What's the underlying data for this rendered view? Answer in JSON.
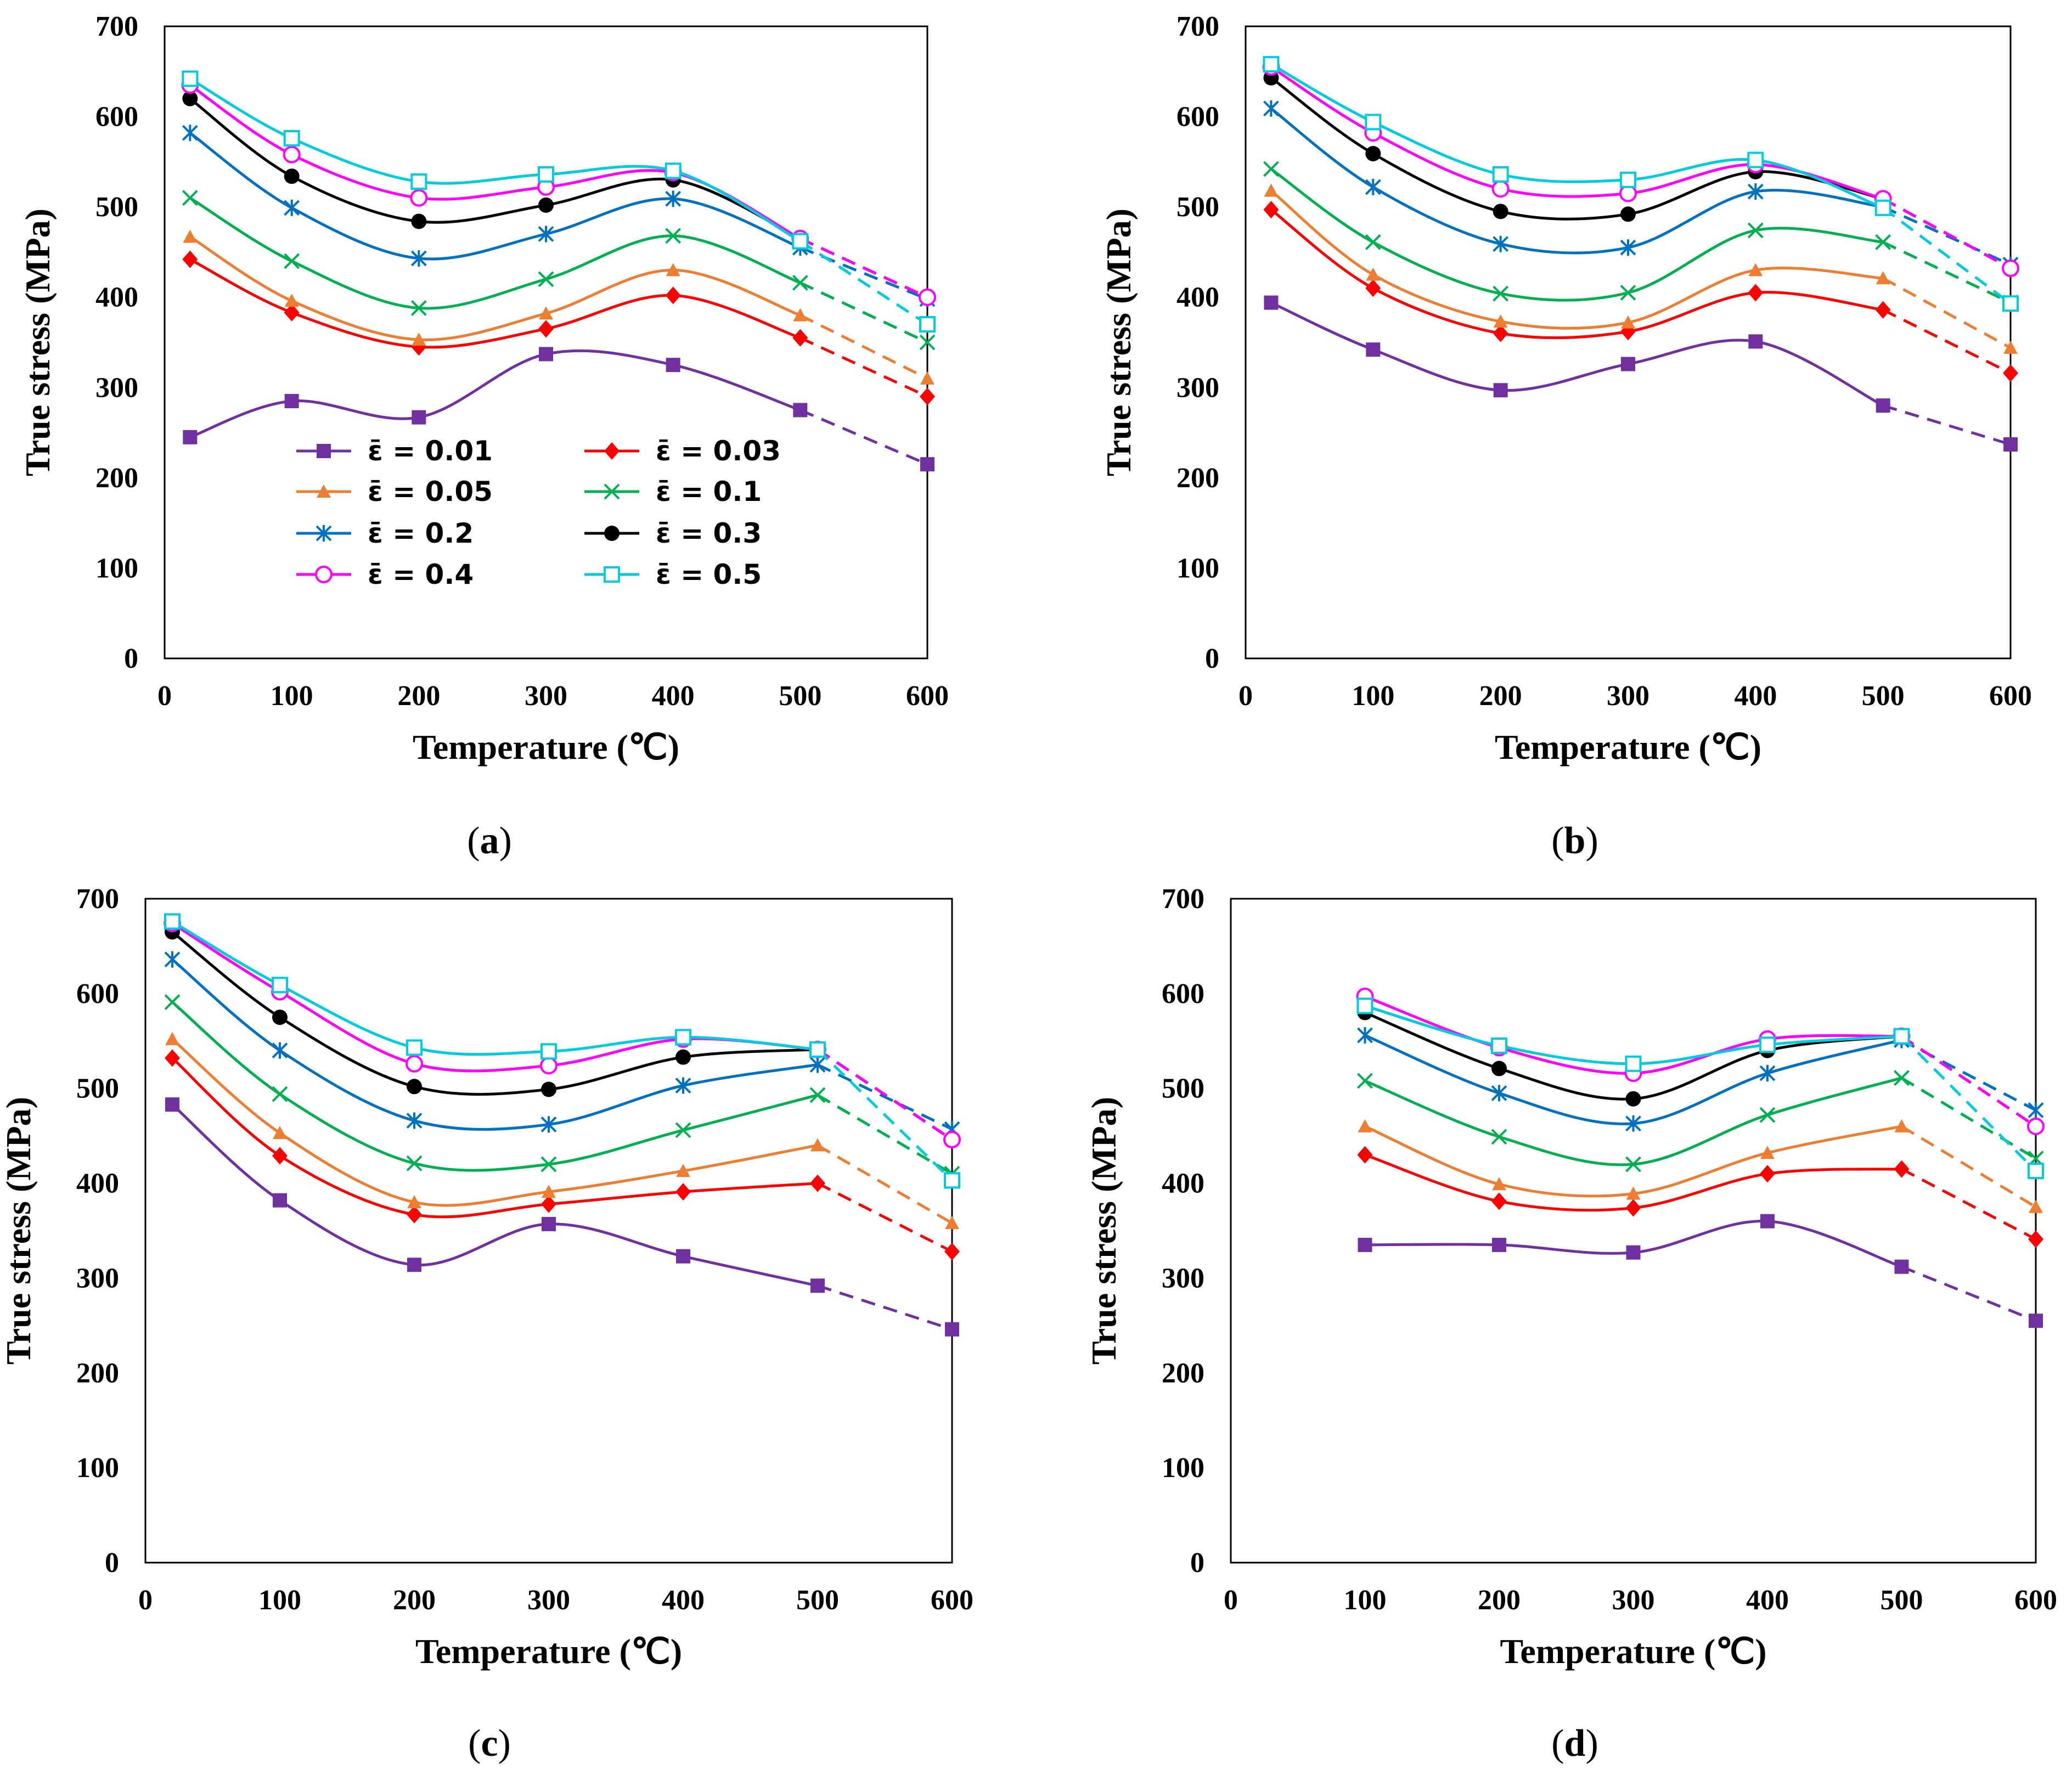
{
  "chart_data": [
    {
      "type": "line",
      "caption": "a",
      "xlabel": "Temperature (℃)",
      "ylabel": "True stress (MPa)",
      "xlim": [
        0,
        600
      ],
      "ylim": [
        0,
        700
      ],
      "xticks": [
        "0",
        "100",
        "200",
        "300",
        "400",
        "500",
        "600"
      ],
      "yticks": [
        "0",
        "100",
        "200",
        "300",
        "400",
        "500",
        "600",
        "700"
      ],
      "legend": "lower-left",
      "x": [
        20,
        100,
        200,
        300,
        400,
        500,
        600
      ],
      "series": [
        {
          "name": "ε̄ = 0.01",
          "values": [
            245,
            285,
            267,
            337,
            325,
            275,
            215
          ]
        },
        {
          "name": "ε̄ = 0.03",
          "values": [
            442,
            383,
            345,
            365,
            402,
            355,
            290
          ]
        },
        {
          "name": "ε̄ = 0.05",
          "values": [
            467,
            396,
            353,
            382,
            430,
            380,
            310
          ]
        },
        {
          "name": "ε̄ = 0.1",
          "values": [
            510,
            440,
            388,
            420,
            468,
            416,
            350
          ]
        },
        {
          "name": "ε̄ = 0.2",
          "values": [
            582,
            499,
            443,
            470,
            509,
            455,
            398
          ]
        },
        {
          "name": "ε̄ = 0.3",
          "values": [
            620,
            534,
            484,
            502,
            530,
            465,
            400
          ]
        },
        {
          "name": "ε̄ = 0.4",
          "values": [
            635,
            558,
            510,
            522,
            538,
            465,
            400
          ]
        },
        {
          "name": "ε̄ = 0.5",
          "values": [
            642,
            576,
            528,
            536,
            540,
            462,
            370
          ]
        }
      ]
    },
    {
      "type": "line",
      "caption": "b",
      "xlabel": "Temperature (℃)",
      "ylabel": "True stress (MPa)",
      "xlim": [
        0,
        600
      ],
      "ylim": [
        0,
        700
      ],
      "xticks": [
        "0",
        "100",
        "200",
        "300",
        "400",
        "500",
        "600"
      ],
      "yticks": [
        "0",
        "100",
        "200",
        "300",
        "400",
        "500",
        "600",
        "700"
      ],
      "x": [
        20,
        100,
        200,
        300,
        400,
        500,
        600
      ],
      "series": [
        {
          "name": "ε̄ = 0.01",
          "values": [
            394,
            342,
            297,
            326,
            351,
            280,
            237
          ]
        },
        {
          "name": "ε̄ = 0.03",
          "values": [
            497,
            410,
            360,
            362,
            405,
            386,
            316
          ]
        },
        {
          "name": "ε̄ = 0.05",
          "values": [
            518,
            425,
            373,
            372,
            430,
            421,
            344
          ]
        },
        {
          "name": "ε̄ = 0.1",
          "values": [
            542,
            461,
            404,
            405,
            474,
            461,
            394
          ]
        },
        {
          "name": "ε̄ = 0.2",
          "values": [
            609,
            522,
            459,
            455,
            517,
            500,
            436
          ]
        },
        {
          "name": "ε̄ = 0.3",
          "values": [
            643,
            559,
            495,
            492,
            539,
            509,
            432
          ]
        },
        {
          "name": "ε̄ = 0.4",
          "values": [
            655,
            582,
            520,
            515,
            547,
            509,
            432
          ]
        },
        {
          "name": "ε̄ = 0.5",
          "values": [
            658,
            594,
            536,
            530,
            552,
            499,
            393
          ]
        }
      ]
    },
    {
      "type": "line",
      "caption": "c",
      "xlabel": "Temperature (℃)",
      "ylabel": "True stress (MPa)",
      "xlim": [
        0,
        600
      ],
      "ylim": [
        0,
        700
      ],
      "xticks": [
        "0",
        "100",
        "200",
        "300",
        "400",
        "500",
        "600"
      ],
      "yticks": [
        "0",
        "100",
        "200",
        "300",
        "400",
        "500",
        "600",
        "700"
      ],
      "x": [
        20,
        100,
        200,
        300,
        400,
        500,
        600
      ],
      "series": [
        {
          "name": "ε̄ = 0.01",
          "values": [
            483,
            382,
            314,
            357,
            323,
            292,
            246
          ]
        },
        {
          "name": "ε̄ = 0.03",
          "values": [
            532,
            429,
            367,
            378,
            391,
            400,
            328
          ]
        },
        {
          "name": "ε̄ = 0.05",
          "values": [
            552,
            453,
            380,
            391,
            413,
            440,
            358
          ]
        },
        {
          "name": "ε̄ = 0.1",
          "values": [
            591,
            494,
            421,
            420,
            456,
            493,
            410
          ]
        },
        {
          "name": "ε̄ = 0.2",
          "values": [
            636,
            540,
            466,
            462,
            503,
            525,
            457
          ]
        },
        {
          "name": "ε̄ = 0.3",
          "values": [
            665,
            575,
            502,
            499,
            533,
            541,
            446
          ]
        },
        {
          "name": "ε̄ = 0.4",
          "values": [
            674,
            602,
            526,
            524,
            552,
            541,
            446
          ]
        },
        {
          "name": "ε̄ = 0.5",
          "values": [
            676,
            609,
            543,
            539,
            554,
            541,
            403
          ]
        }
      ]
    },
    {
      "type": "line",
      "caption": "d",
      "xlabel": "Temperature (℃)",
      "ylabel": "True stress (MPa)",
      "xlim": [
        0,
        600
      ],
      "ylim": [
        0,
        700
      ],
      "xticks": [
        "0",
        "100",
        "200",
        "300",
        "400",
        "500",
        "600"
      ],
      "yticks": [
        "0",
        "100",
        "200",
        "300",
        "400",
        "500",
        "600",
        "700"
      ],
      "x": [
        100,
        200,
        300,
        400,
        500,
        600
      ],
      "series": [
        {
          "name": "ε̄ = 0.01",
          "values": [
            335,
            335,
            327,
            360,
            312,
            255
          ]
        },
        {
          "name": "ε̄ = 0.03",
          "values": [
            430,
            381,
            374,
            410,
            415,
            341
          ]
        },
        {
          "name": "ε̄ = 0.05",
          "values": [
            460,
            399,
            389,
            432,
            460,
            375
          ]
        },
        {
          "name": "ε̄ = 0.1",
          "values": [
            508,
            449,
            420,
            472,
            511,
            426
          ]
        },
        {
          "name": "ε̄ = 0.2",
          "values": [
            556,
            495,
            463,
            516,
            551,
            477
          ]
        },
        {
          "name": "ε̄ = 0.3",
          "values": [
            580,
            521,
            489,
            540,
            555,
            460
          ]
        },
        {
          "name": "ε̄ = 0.4",
          "values": [
            597,
            543,
            516,
            552,
            555,
            460
          ]
        },
        {
          "name": "ε̄ = 0.5",
          "values": [
            587,
            545,
            526,
            546,
            555,
            413
          ]
        }
      ]
    }
  ],
  "legend": {
    "items": [
      {
        "symbol": "ε̄",
        "eq": "= 0.01"
      },
      {
        "symbol": "ε̄",
        "eq": "= 0.03"
      },
      {
        "symbol": "ε̄",
        "eq": "= 0.05"
      },
      {
        "symbol": "ε̄",
        "eq": "= 0.1"
      },
      {
        "symbol": "ε̄",
        "eq": "= 0.2"
      },
      {
        "symbol": "ε̄",
        "eq": "= 0.3"
      },
      {
        "symbol": "ε̄",
        "eq": "= 0.4"
      },
      {
        "symbol": "ε̄",
        "eq": "= 0.5"
      }
    ]
  },
  "series_style": [
    {
      "color": "#7030A0",
      "marker": "square-filled"
    },
    {
      "color": "#FF0000",
      "marker": "diamond-filled"
    },
    {
      "color": "#ED7D31",
      "marker": "triangle-filled"
    },
    {
      "color": "#00B050",
      "marker": "x"
    },
    {
      "color": "#0070C0",
      "marker": "asterisk"
    },
    {
      "color": "#000000",
      "marker": "circle-filled"
    },
    {
      "color": "#FF00FF",
      "marker": "circle-open"
    },
    {
      "color": "#00CCDD",
      "marker": "square-open"
    }
  ]
}
